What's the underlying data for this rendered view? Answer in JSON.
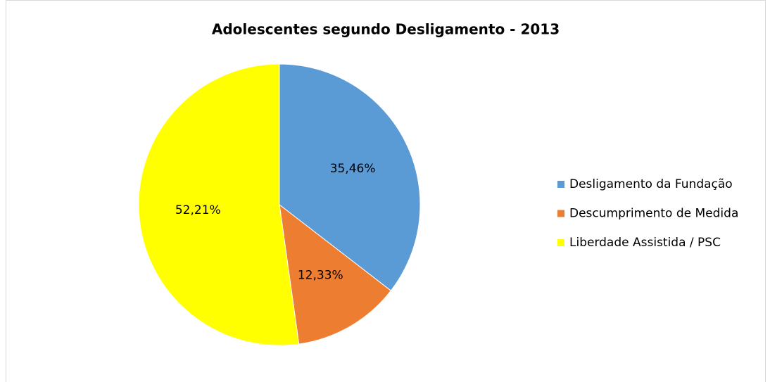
{
  "chart_data": {
    "type": "pie",
    "title": "Adolescentes segundo Desligamento - 2013",
    "categories": [
      "Desligamento da Fundação",
      "Descumprimento de Medida",
      "Liberdade Assistida / PSC"
    ],
    "values": [
      35.46,
      12.33,
      52.21
    ],
    "value_labels": [
      "35,46%",
      "12,33%",
      "52,21%"
    ],
    "colors": [
      "#5b9bd5",
      "#ed7d31",
      "#ffff00"
    ],
    "legend": "right"
  }
}
